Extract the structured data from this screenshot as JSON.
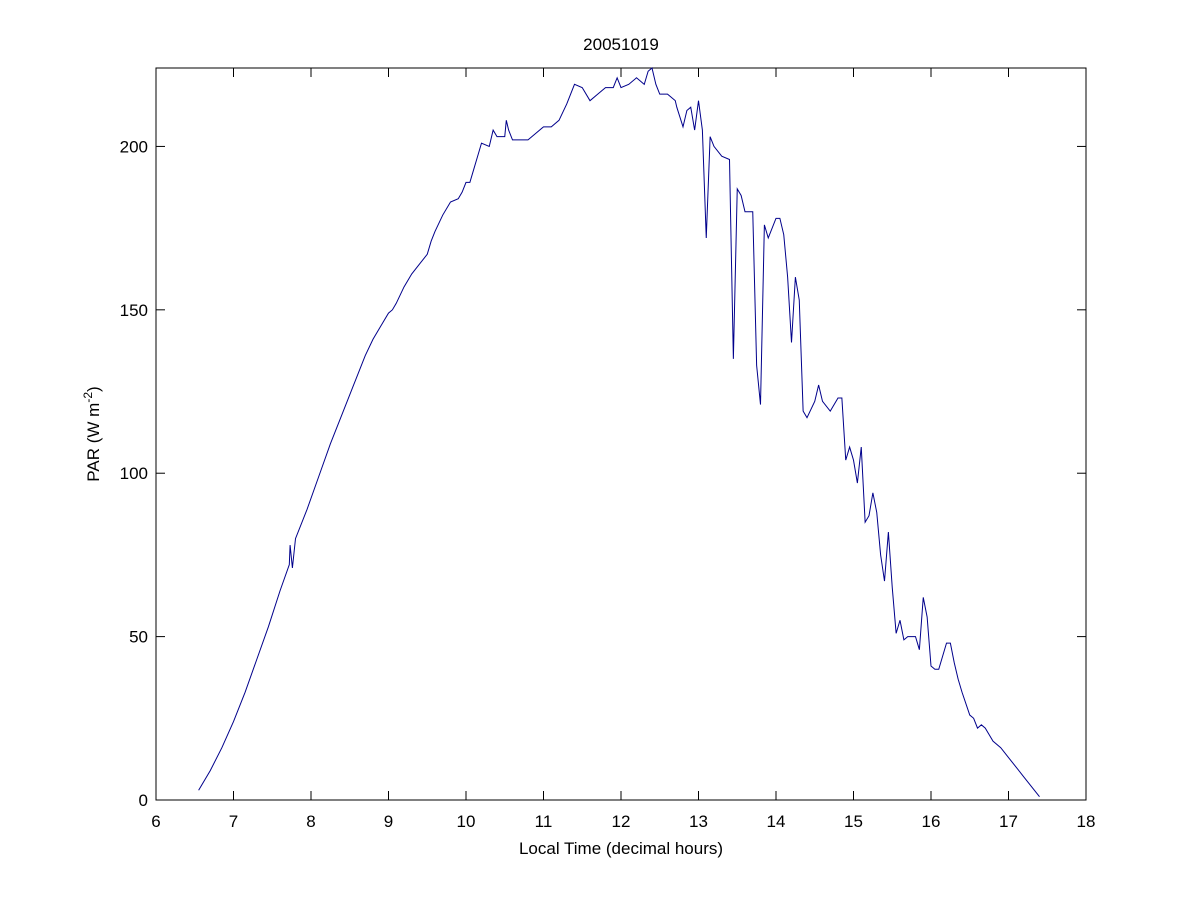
{
  "chart_data": {
    "type": "line",
    "title": "20051019",
    "xlabel": "Local Time (decimal hours)",
    "ylabel": "PAR (W m",
    "ylabel_sup": "-2",
    "ylabel_close": ")",
    "xlim": [
      6,
      18
    ],
    "ylim": [
      0,
      224
    ],
    "xticks": [
      6,
      7,
      8,
      9,
      10,
      11,
      12,
      13,
      14,
      15,
      16,
      17,
      18
    ],
    "yticks": [
      0,
      50,
      100,
      150,
      200
    ],
    "grid": false,
    "line_color": "#00008b",
    "series": [
      {
        "x": [
          6.55,
          6.7,
          6.85,
          7.0,
          7.15,
          7.3,
          7.45,
          7.6,
          7.72,
          7.73,
          7.76,
          7.8,
          7.95,
          8.1,
          8.25,
          8.4,
          8.55,
          8.7,
          8.8,
          8.9,
          9.0,
          9.05,
          9.1,
          9.2,
          9.3,
          9.4,
          9.5,
          9.55,
          9.6,
          9.7,
          9.8,
          9.9,
          9.95,
          10.0,
          10.05,
          10.1,
          10.15,
          10.2,
          10.3,
          10.35,
          10.4,
          10.5,
          10.52,
          10.55,
          10.6,
          10.7,
          10.8,
          10.9,
          11.0,
          11.1,
          11.2,
          11.3,
          11.4,
          11.5,
          11.6,
          11.7,
          11.8,
          11.9,
          11.95,
          12.0,
          12.1,
          12.2,
          12.3,
          12.35,
          12.4,
          12.45,
          12.5,
          12.6,
          12.7,
          12.72,
          12.8,
          12.85,
          12.9,
          12.95,
          13.0,
          13.05,
          13.1,
          13.15,
          13.2,
          13.3,
          13.4,
          13.45,
          13.5,
          13.55,
          13.6,
          13.7,
          13.75,
          13.8,
          13.85,
          13.9,
          14.0,
          14.05,
          14.1,
          14.15,
          14.2,
          14.25,
          14.3,
          14.35,
          14.4,
          14.5,
          14.55,
          14.6,
          14.7,
          14.8,
          14.85,
          14.9,
          14.95,
          15.0,
          15.05,
          15.1,
          15.15,
          15.2,
          15.25,
          15.3,
          15.35,
          15.4,
          15.45,
          15.5,
          15.55,
          15.6,
          15.65,
          15.7,
          15.8,
          15.85,
          15.9,
          15.95,
          16.0,
          16.05,
          16.1,
          16.2,
          16.25,
          16.3,
          16.35,
          16.4,
          16.5,
          16.55,
          16.6,
          16.65,
          16.7,
          16.75,
          16.8,
          16.9,
          17.0,
          17.1,
          17.2,
          17.3,
          17.4
        ],
        "y": [
          3,
          9,
          16,
          24,
          33,
          43,
          53,
          64,
          72,
          78,
          71,
          80,
          89,
          99,
          109,
          118,
          127,
          136,
          141,
          145,
          149,
          150,
          152,
          157,
          161,
          164,
          167,
          171,
          174,
          179,
          183,
          184,
          186,
          189,
          189,
          193,
          197,
          201,
          200,
          205,
          203,
          203,
          208,
          205,
          202,
          202,
          202,
          204,
          206,
          206,
          208,
          213,
          219,
          218,
          214,
          216,
          218,
          218,
          221,
          218,
          219,
          221,
          219,
          223,
          224,
          219,
          216,
          216,
          214,
          212,
          206,
          211,
          212,
          205,
          214,
          205,
          172,
          203,
          200,
          197,
          196,
          135,
          187,
          185,
          180,
          180,
          133,
          121,
          176,
          172,
          178,
          178,
          173,
          160,
          140,
          160,
          153,
          119,
          117,
          122,
          127,
          122,
          119,
          123,
          123,
          104,
          108,
          104,
          97,
          108,
          85,
          87,
          94,
          88,
          75,
          67,
          82,
          65,
          51,
          55,
          49,
          50,
          50,
          46,
          62,
          56,
          41,
          40,
          40,
          48,
          48,
          42,
          37,
          33,
          26,
          25,
          22,
          23,
          22,
          20,
          18,
          16,
          13,
          10,
          7,
          4,
          1
        ]
      }
    ]
  }
}
